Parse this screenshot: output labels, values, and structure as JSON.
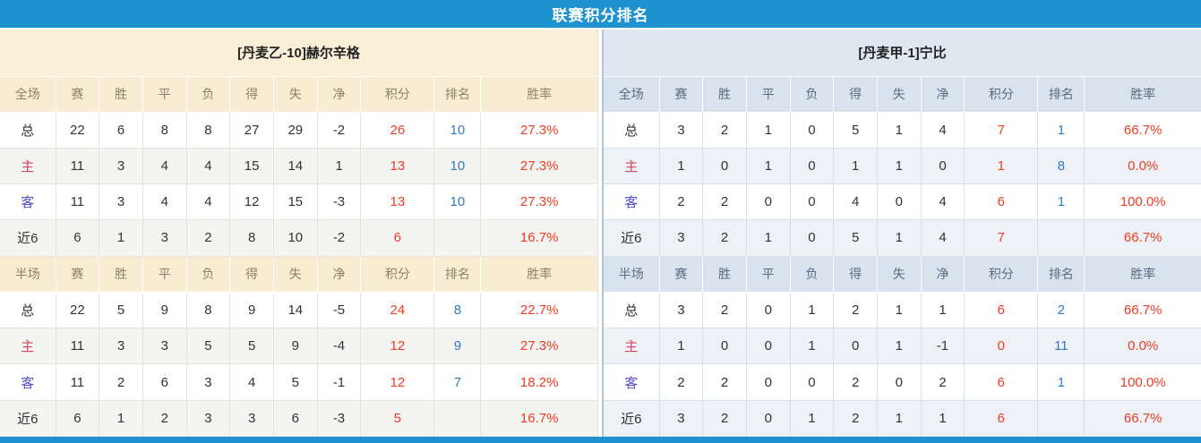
{
  "title_bar": {
    "title": "联赛积分排名"
  },
  "colors": {
    "accent_blue": "#1e93d0",
    "points_red": "#ef3b24",
    "rank_blue": "#3079c8",
    "home_label_red": "#d4455e",
    "away_label_blue": "#4f4fd0",
    "left_header_bg": "#faf0d8",
    "right_header_bg": "#dfe7f1"
  },
  "panels": [
    {
      "team": "[丹麦乙-10]赫尔辛格",
      "full": {
        "header": [
          "全场",
          "赛",
          "胜",
          "平",
          "负",
          "得",
          "失",
          "净",
          "积分",
          "排名",
          "胜率"
        ],
        "rows": [
          {
            "type": "total",
            "cells": [
              "总",
              "22",
              "6",
              "8",
              "8",
              "27",
              "29",
              "-2",
              "26",
              "10",
              "27.3%"
            ]
          },
          {
            "type": "home",
            "cells": [
              "主",
              "11",
              "3",
              "4",
              "4",
              "15",
              "14",
              "1",
              "13",
              "10",
              "27.3%"
            ]
          },
          {
            "type": "away",
            "cells": [
              "客",
              "11",
              "3",
              "4",
              "4",
              "12",
              "15",
              "-3",
              "13",
              "10",
              "27.3%"
            ]
          },
          {
            "type": "recent",
            "cells": [
              "近6",
              "6",
              "1",
              "3",
              "2",
              "8",
              "10",
              "-2",
              "6",
              "",
              "16.7%"
            ]
          }
        ]
      },
      "half": {
        "header": [
          "半场",
          "赛",
          "胜",
          "平",
          "负",
          "得",
          "失",
          "净",
          "积分",
          "排名",
          "胜率"
        ],
        "rows": [
          {
            "type": "total",
            "cells": [
              "总",
              "22",
              "5",
              "9",
              "8",
              "9",
              "14",
              "-5",
              "24",
              "8",
              "22.7%"
            ]
          },
          {
            "type": "home",
            "cells": [
              "主",
              "11",
              "3",
              "3",
              "5",
              "5",
              "9",
              "-4",
              "12",
              "9",
              "27.3%"
            ]
          },
          {
            "type": "away",
            "cells": [
              "客",
              "11",
              "2",
              "6",
              "3",
              "4",
              "5",
              "-1",
              "12",
              "7",
              "18.2%"
            ]
          },
          {
            "type": "recent",
            "cells": [
              "近6",
              "6",
              "1",
              "2",
              "3",
              "3",
              "6",
              "-3",
              "5",
              "",
              "16.7%"
            ]
          }
        ]
      }
    },
    {
      "team": "[丹麦甲-1]宁比",
      "full": {
        "header": [
          "全场",
          "赛",
          "胜",
          "平",
          "负",
          "得",
          "失",
          "净",
          "积分",
          "排名",
          "胜率"
        ],
        "rows": [
          {
            "type": "total",
            "cells": [
              "总",
              "3",
              "2",
              "1",
              "0",
              "5",
              "1",
              "4",
              "7",
              "1",
              "66.7%"
            ]
          },
          {
            "type": "home",
            "cells": [
              "主",
              "1",
              "0",
              "1",
              "0",
              "1",
              "1",
              "0",
              "1",
              "8",
              "0.0%"
            ]
          },
          {
            "type": "away",
            "cells": [
              "客",
              "2",
              "2",
              "0",
              "0",
              "4",
              "0",
              "4",
              "6",
              "1",
              "100.0%"
            ]
          },
          {
            "type": "recent",
            "cells": [
              "近6",
              "3",
              "2",
              "1",
              "0",
              "5",
              "1",
              "4",
              "7",
              "",
              "66.7%"
            ]
          }
        ]
      },
      "half": {
        "header": [
          "半场",
          "赛",
          "胜",
          "平",
          "负",
          "得",
          "失",
          "净",
          "积分",
          "排名",
          "胜率"
        ],
        "rows": [
          {
            "type": "total",
            "cells": [
              "总",
              "3",
              "2",
              "0",
              "1",
              "2",
              "1",
              "1",
              "6",
              "2",
              "66.7%"
            ]
          },
          {
            "type": "home",
            "cells": [
              "主",
              "1",
              "0",
              "0",
              "1",
              "0",
              "1",
              "-1",
              "0",
              "11",
              "0.0%"
            ]
          },
          {
            "type": "away",
            "cells": [
              "客",
              "2",
              "2",
              "0",
              "0",
              "2",
              "0",
              "2",
              "6",
              "1",
              "100.0%"
            ]
          },
          {
            "type": "recent",
            "cells": [
              "近6",
              "3",
              "2",
              "0",
              "1",
              "2",
              "1",
              "1",
              "6",
              "",
              "66.7%"
            ]
          }
        ]
      }
    }
  ]
}
